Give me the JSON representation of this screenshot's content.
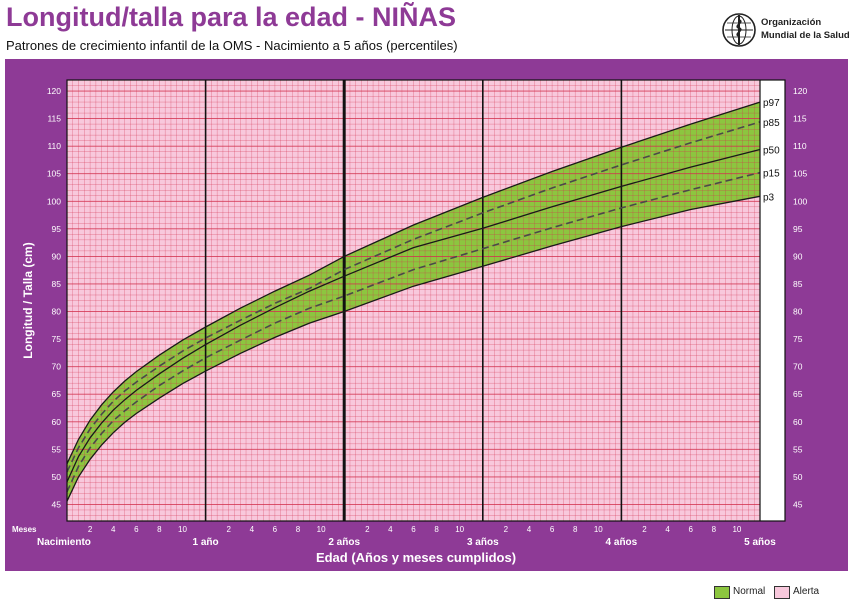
{
  "header": {
    "title": "Longitud/talla para la edad - NIÑAS",
    "subtitle": "Patrones de crecimiento infantil de la OMS - Nacimiento a 5 años (percentiles)",
    "org_line1": "Organización",
    "org_line2": "Mundial de la Salud",
    "logo_icon": "who-emblem-icon"
  },
  "legend": {
    "normal_label": "Normal",
    "alert_label": "Alerta"
  },
  "colors": {
    "panel": "#8e3a96",
    "normal_fill": "#8cc63f",
    "alert_fill": "#f8c8dc",
    "grid": "#d2324f",
    "percentile_line": "#1a1a1a",
    "title": "#8e3a96"
  },
  "chart_data": {
    "type": "line",
    "title": "Longitud/talla para la edad - NIÑAS",
    "subtitle": "Patrones de crecimiento infantil de la OMS - Nacimiento a 5 años (percentiles)",
    "xlabel": "Edad (Años y meses cumplidos)",
    "ylabel": "Longitud / Talla (cm)",
    "x_unit": "months",
    "xlim": [
      0,
      60
    ],
    "ylim": [
      42,
      122
    ],
    "y_ticks": [
      45,
      50,
      55,
      60,
      65,
      70,
      75,
      80,
      85,
      90,
      95,
      100,
      105,
      110,
      115,
      120
    ],
    "month_tick_labels": [
      "2",
      "4",
      "6",
      "8",
      "10"
    ],
    "months_label": "Meses",
    "year_labels": [
      "Nacimiento",
      "1 año",
      "2 años",
      "3 años",
      "4 años",
      "5 años"
    ],
    "grid": true,
    "shaded_bands": [
      {
        "name": "Normal",
        "from": "p3",
        "to": "p97"
      },
      {
        "name": "Alerta",
        "region": "outside p3–p97"
      }
    ],
    "x": [
      0,
      1,
      2,
      3,
      4,
      5,
      6,
      8,
      10,
      12,
      15,
      18,
      21,
      24,
      30,
      36,
      42,
      48,
      54,
      60
    ],
    "series": [
      {
        "name": "p97",
        "dashed": false,
        "values": [
          52.4,
          56.8,
          60.3,
          63.1,
          65.4,
          67.4,
          69.1,
          72.1,
          74.8,
          77.2,
          80.6,
          83.7,
          86.6,
          90.0,
          95.7,
          100.7,
          105.4,
          109.8,
          114.0,
          118.0
        ]
      },
      {
        "name": "p85",
        "dashed": true,
        "values": [
          50.9,
          55.3,
          58.7,
          61.4,
          63.7,
          65.6,
          67.2,
          70.1,
          72.8,
          75.2,
          78.4,
          81.5,
          84.2,
          87.6,
          93.1,
          97.9,
          102.4,
          106.6,
          110.6,
          114.4
        ]
      },
      {
        "name": "p50",
        "dashed": false,
        "values": [
          49.1,
          53.7,
          57.1,
          59.8,
          62.1,
          64.0,
          65.7,
          68.7,
          71.5,
          74.0,
          77.5,
          80.7,
          83.7,
          86.4,
          91.6,
          95.1,
          99.0,
          102.7,
          106.2,
          109.4
        ]
      },
      {
        "name": "p15",
        "dashed": true,
        "values": [
          47.3,
          51.9,
          55.3,
          57.9,
          60.2,
          62.0,
          63.6,
          66.6,
          69.2,
          71.6,
          74.8,
          77.9,
          80.6,
          82.8,
          87.6,
          91.4,
          95.2,
          98.8,
          102.1,
          105.2
        ]
      },
      {
        "name": "p3",
        "dashed": false,
        "values": [
          45.6,
          50.0,
          53.2,
          55.8,
          58.0,
          59.9,
          61.5,
          64.3,
          66.9,
          69.2,
          72.4,
          75.3,
          77.9,
          80.0,
          84.6,
          88.2,
          91.9,
          95.4,
          98.5,
          100.9
        ]
      }
    ]
  }
}
